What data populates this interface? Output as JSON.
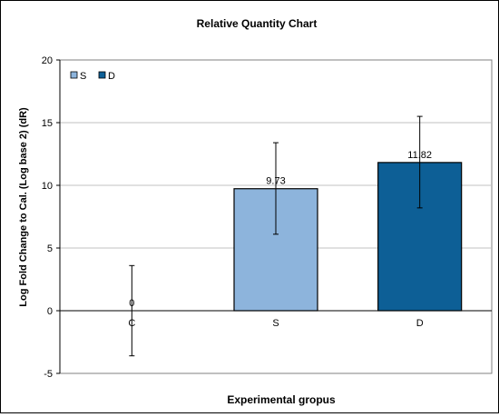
{
  "chart_data": {
    "type": "bar",
    "title": "Relative Quantity Chart",
    "xlabel": "Experimental gropus",
    "ylabel": "Log Fold Change to Cal. (Log base 2) (dR)",
    "categories": [
      "C",
      "S",
      "D"
    ],
    "values": [
      0,
      9.73,
      11.82
    ],
    "value_labels": [
      "0",
      "9.73",
      "11.82"
    ],
    "error_low": [
      -3.6,
      6.1,
      8.2
    ],
    "error_high": [
      3.6,
      13.4,
      15.5
    ],
    "ylim": [
      -5,
      20
    ],
    "yticks": [
      -5,
      0,
      5,
      10,
      15,
      20
    ],
    "grid": true,
    "legend_position": "top-left",
    "legend": [
      {
        "name": "S",
        "color": "#8db4dc"
      },
      {
        "name": "D",
        "color": "#0d5f96"
      }
    ],
    "bar_colors": [
      "none",
      "#8db4dc",
      "#0d5f96"
    ],
    "plot_background": "#ffffff",
    "grid_color": "#c0c0c0"
  }
}
